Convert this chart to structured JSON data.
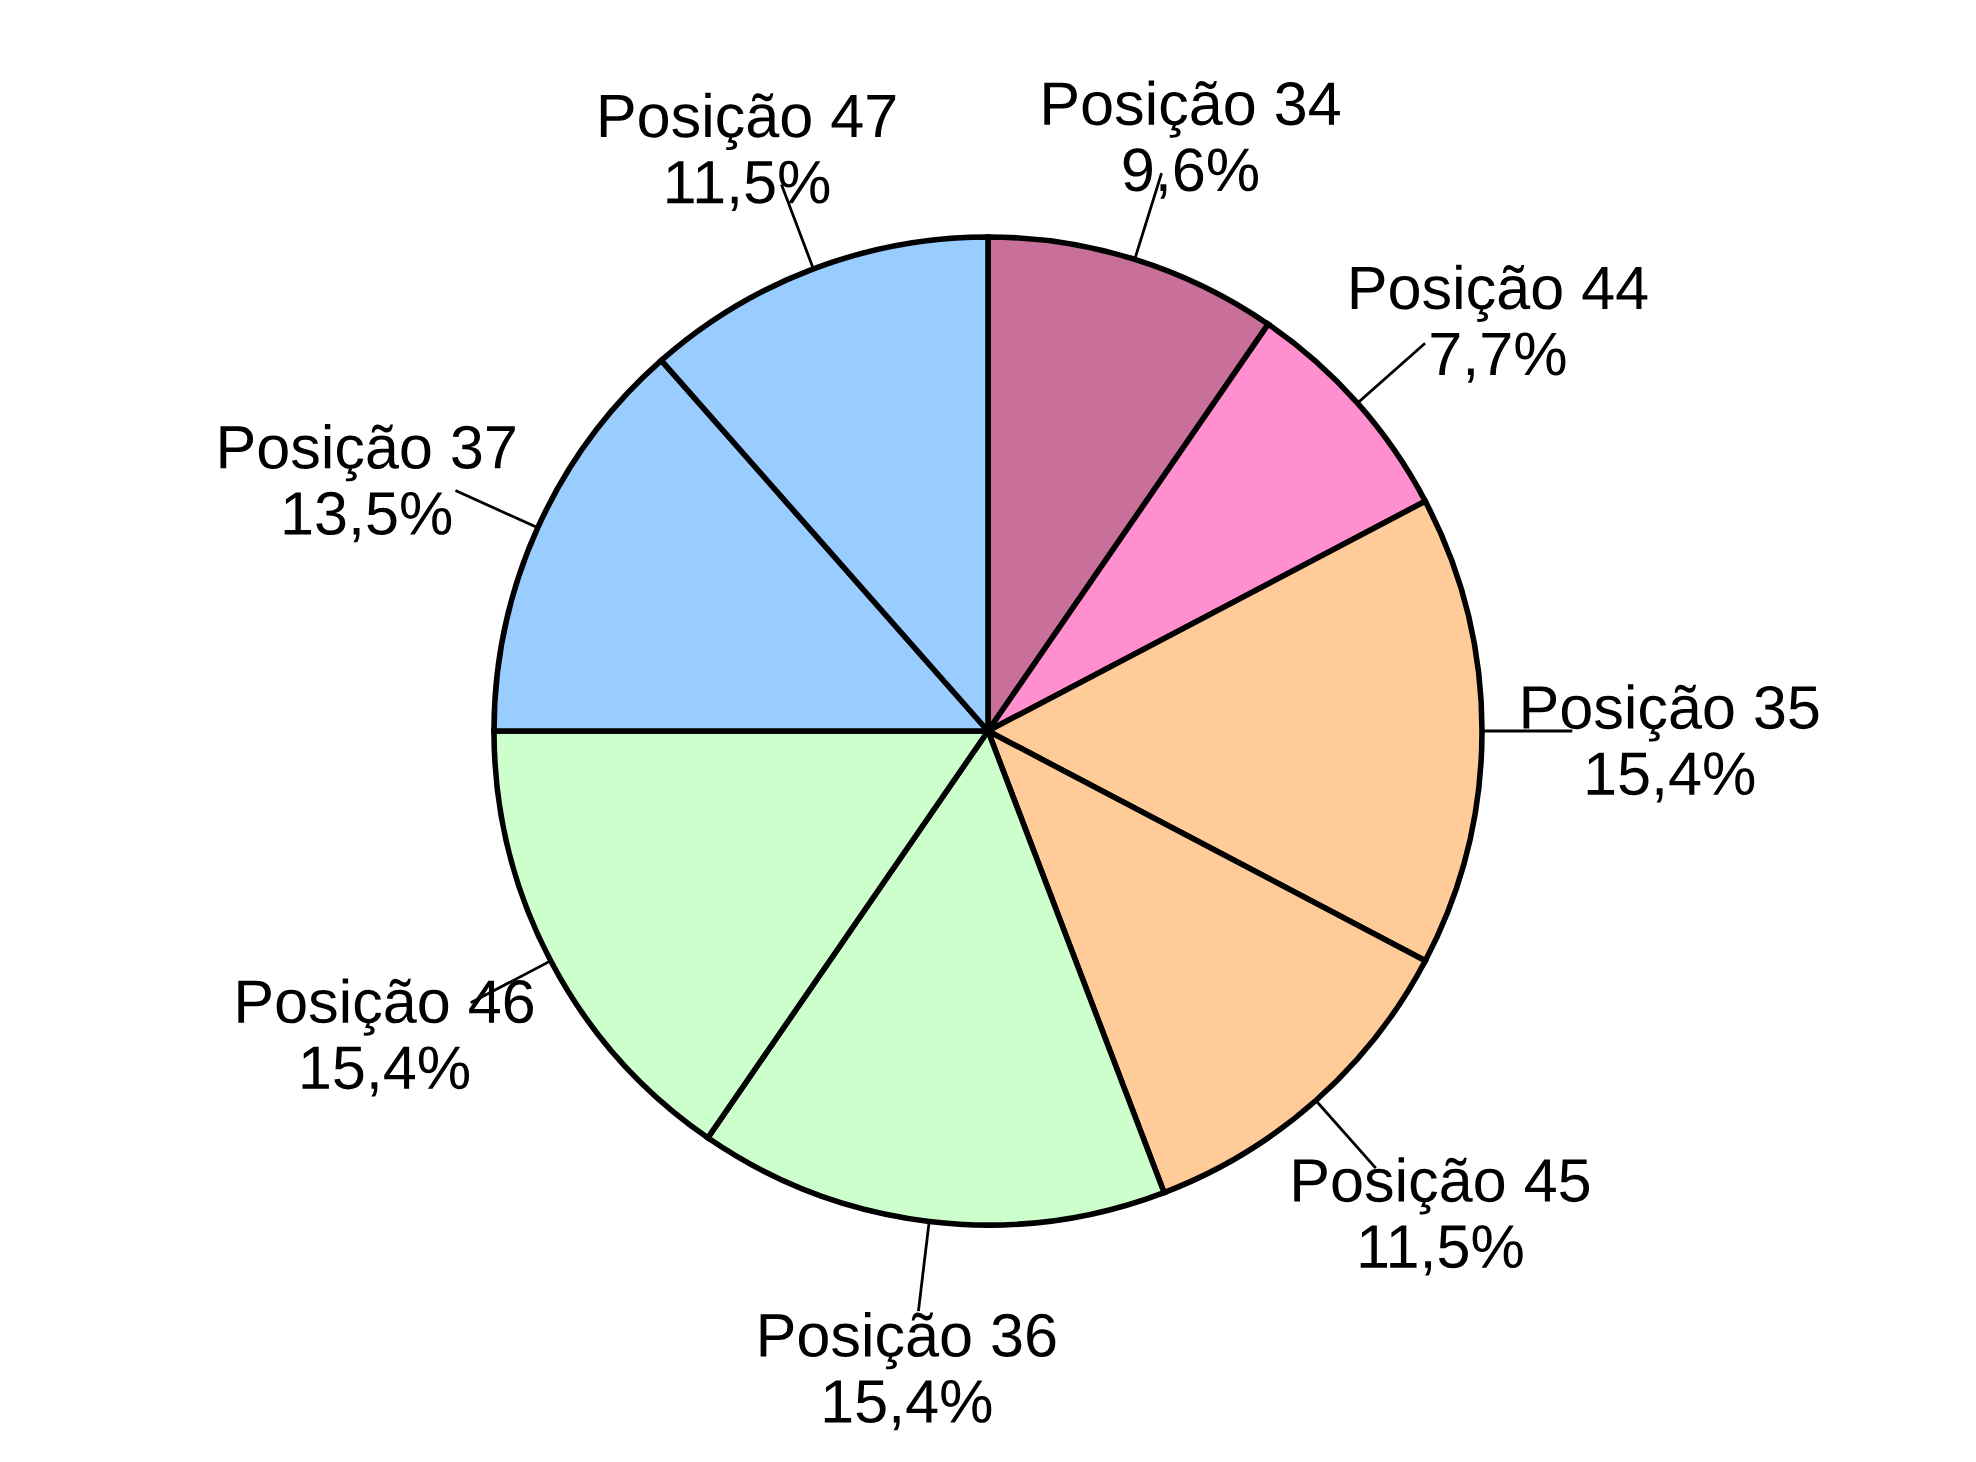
{
  "chart_data": {
    "type": "pie",
    "categories": [
      "Posição 34",
      "Posição 44",
      "Posição 35",
      "Posição 45",
      "Posição 36",
      "Posição 46",
      "Posição 37",
      "Posição 47"
    ],
    "values": [
      9.6,
      7.7,
      15.4,
      11.5,
      15.4,
      15.4,
      13.5,
      11.5
    ],
    "value_labels": [
      "9,6%",
      "7,7%",
      "15,4%",
      "11,5%",
      "15,4%",
      "15,4%",
      "13,5%",
      "11,5%"
    ],
    "colors": [
      "#c8709a",
      "#ff8fce",
      "#ffcc99",
      "#ffcc99",
      "#ccffcc",
      "#ccffcc",
      "#99ccff",
      "#99ccff"
    ],
    "legend": false
  }
}
